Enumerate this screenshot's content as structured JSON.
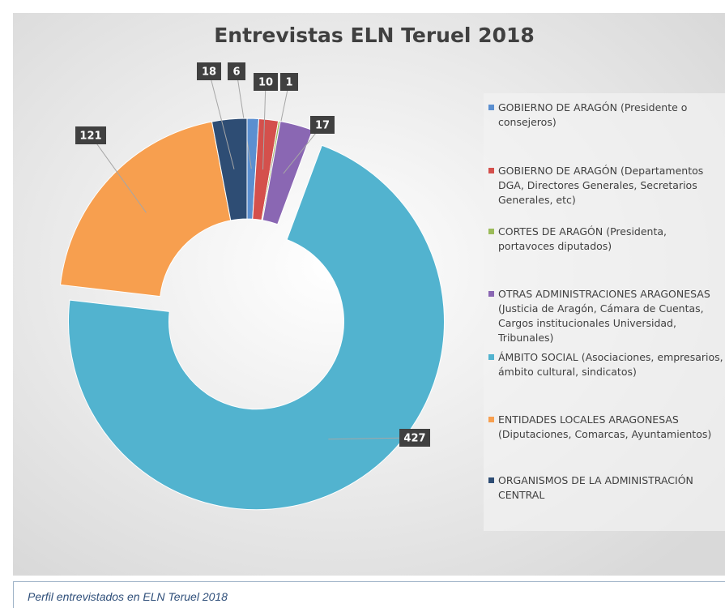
{
  "chart_data": {
    "type": "donut",
    "title": "Entrevistas ELN Teruel 2018",
    "categories": [
      "GOBIERNO DE ARAGÓN (Presidente o consejeros)",
      "GOBIERNO DE ARAGÓN (Departamentos DGA, Directores Generales, Secretarios Generales, etc)",
      "CORTES DE ARAGÓN (Presidenta, portavoces diputados)",
      "OTRAS ADMINISTRACIONES ARAGONESAS (Justicia de Aragón, Cámara de Cuentas, Cargos institucionales Universidad, Tribunales)",
      "ÁMBITO SOCIAL (Asociaciones, empresarios, ámbito cultural, sindicatos)",
      "ENTIDADES LOCALES ARAGONESAS (Diputaciones, Comarcas, Ayuntamientos)",
      "ORGANISMOS DE LA ADMINISTRACIÓN CENTRAL"
    ],
    "values": [
      6,
      10,
      1,
      17,
      427,
      121,
      18
    ],
    "colors": [
      "#5b8fd0",
      "#d4504c",
      "#9bbb59",
      "#8a67b3",
      "#52b3cf",
      "#f79f4f",
      "#2e4d74"
    ],
    "legend": "right"
  },
  "caption": "Perfil entrevistados en ELN Teruel 2018"
}
